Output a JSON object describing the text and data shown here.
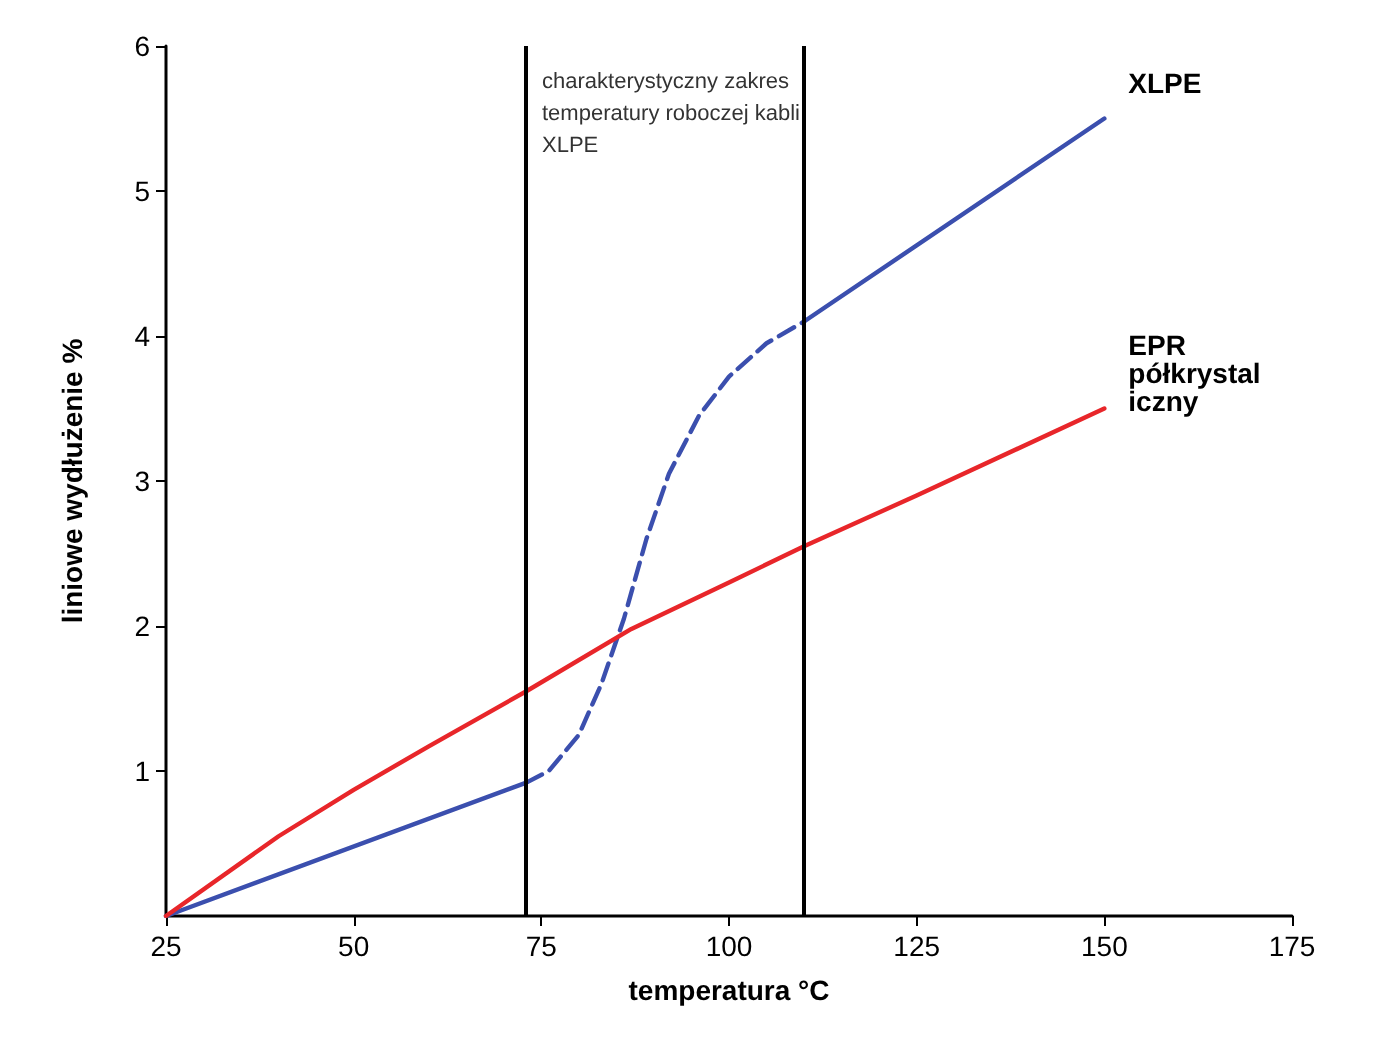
{
  "chart_data": {
    "type": "line",
    "xlabel": "temperatura °C",
    "ylabel": "liniowe wydłużenie %",
    "xlim": [
      25,
      175
    ],
    "xticks": [
      25,
      50,
      75,
      100,
      125,
      150,
      175
    ],
    "ylim": [
      0,
      6
    ],
    "yticks": [
      1,
      2,
      3,
      4,
      5,
      6
    ],
    "grid": false,
    "legend": false,
    "marker": "none",
    "line_style": "solid",
    "series": [
      {
        "color": "#3b4fae",
        "x": [
          25,
          73
        ],
        "values": [
          0,
          0.92
        ]
      },
      {
        "color": "#3b4fae",
        "line_style": "dashed",
        "x": [
          73,
          76,
          80,
          83,
          86,
          89,
          92,
          96,
          100,
          105,
          110
        ],
        "values": [
          0.92,
          1.0,
          1.25,
          1.6,
          2.05,
          2.6,
          3.05,
          3.45,
          3.72,
          3.95,
          4.1
        ]
      },
      {
        "name": "XLPE",
        "color": "#3b4fae",
        "x": [
          110,
          150
        ],
        "values": [
          4.1,
          5.5
        ]
      },
      {
        "name": "EPR półkrystaliczny",
        "color": "#e8262a",
        "x": [
          25,
          40,
          50,
          60,
          73,
          87,
          100,
          110,
          125,
          150
        ],
        "values": [
          0,
          0.55,
          0.87,
          1.17,
          1.55,
          1.98,
          2.3,
          2.55,
          2.9,
          3.5
        ]
      }
    ],
    "ref_lines": [
      {
        "axis": "x",
        "value": 73,
        "color": "#000000"
      },
      {
        "axis": "x",
        "value": 110,
        "color": "#000000"
      }
    ],
    "annotations": [
      "charakterystyczny zakres temperatury roboczej kabli XLPE"
    ]
  }
}
